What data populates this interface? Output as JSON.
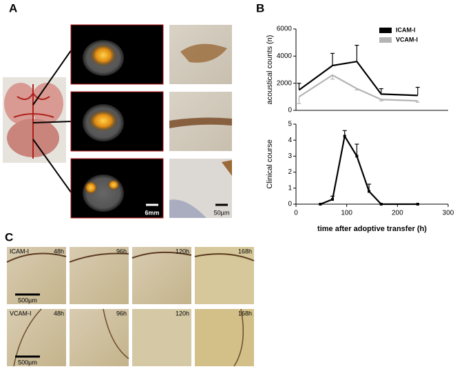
{
  "panel_labels": [
    "A",
    "B",
    "C"
  ],
  "panel_a": {
    "scale_bars": [
      "6mm",
      "50µm"
    ]
  },
  "panel_c": {
    "rows": [
      "ICAM-I",
      "VCAM-I"
    ],
    "times": [
      "48h",
      "96h",
      "120h",
      "168h"
    ],
    "scale_bar": "500µm"
  },
  "chart_data": [
    {
      "type": "line",
      "ylabel": "acoustical counts (n)",
      "x": [
        6,
        72,
        120,
        168,
        240
      ],
      "xlim": [
        0,
        300
      ],
      "ylim": [
        0,
        6000
      ],
      "yticks": [
        0,
        2000,
        4000,
        6000
      ],
      "legend": "upper right",
      "series": [
        {
          "name": "ICAM-I",
          "color": "#000000",
          "values": [
            1500,
            3300,
            3600,
            1200,
            1100
          ],
          "errors": [
            500,
            900,
            1200,
            400,
            600
          ],
          "error_side": "up"
        },
        {
          "name": "VCAM-I",
          "color": "#b4b4b4",
          "values": [
            1000,
            2600,
            1600,
            800,
            700
          ],
          "errors": [
            500,
            300,
            100,
            100,
            100
          ],
          "error_side": "down"
        }
      ]
    },
    {
      "type": "line",
      "ylabel": "Clinical course",
      "xlabel": "time after adoptive transfer (h)",
      "x": [
        48,
        72,
        96,
        120,
        144,
        168,
        240
      ],
      "xlim": [
        0,
        300
      ],
      "xticks": [
        0,
        100,
        200,
        300
      ],
      "ylim": [
        0,
        5
      ],
      "yticks": [
        0,
        1,
        2,
        3,
        4,
        5
      ],
      "marker": "square",
      "series": [
        {
          "color": "#000000",
          "values": [
            0,
            0.3,
            4.25,
            3.0,
            0.8,
            0,
            0
          ],
          "errors": [
            0,
            0.2,
            0.35,
            0.75,
            0.45,
            0,
            0
          ],
          "error_side": "up"
        }
      ]
    }
  ]
}
